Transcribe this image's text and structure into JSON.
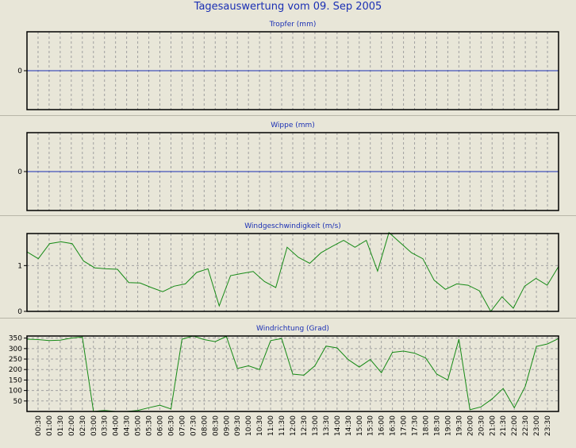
{
  "page": {
    "title": "Tagesauswertung vom 09. Sep 2005"
  },
  "colors": {
    "title": "#1a2fb4",
    "grid": "#a0a0a0",
    "zero_line": "#1a2fb4",
    "series_line": "#168a16",
    "frame": "#000000"
  },
  "time_labels": [
    "00:30",
    "01:00",
    "01:30",
    "02:00",
    "02:30",
    "03:00",
    "03:30",
    "04:00",
    "04:30",
    "05:00",
    "05:30",
    "06:00",
    "06:30",
    "07:00",
    "07:30",
    "08:00",
    "08:30",
    "09:00",
    "09:30",
    "10:00",
    "10:30",
    "11:00",
    "11:30",
    "12:00",
    "12:30",
    "13:00",
    "13:30",
    "14:00",
    "14:30",
    "15:00",
    "15:30",
    "16:00",
    "16:30",
    "17:00",
    "17:30",
    "18:00",
    "18:30",
    "19:00",
    "19:30",
    "20:00",
    "20:30",
    "21:00",
    "21:30",
    "22:00",
    "22:30",
    "23:00",
    "23:30"
  ],
  "chart_data": [
    {
      "type": "line",
      "title": "Tropfer (mm)",
      "yticks": [
        "0"
      ],
      "ylim": [
        -1,
        1
      ],
      "grid": true,
      "series": [
        {
          "values": []
        }
      ]
    },
    {
      "type": "line",
      "title": "Wippe (mm)",
      "yticks": [
        "0"
      ],
      "ylim": [
        -1,
        1
      ],
      "grid": true,
      "series": [
        {
          "values": []
        }
      ]
    },
    {
      "type": "line",
      "title": "Windgeschwindigkeit (m/s)",
      "yticks": [
        "0",
        "1"
      ],
      "ylim": [
        0,
        1.7
      ],
      "grid": true,
      "series": [
        {
          "values": [
            1.3,
            1.15,
            1.48,
            1.52,
            1.48,
            1.1,
            0.95,
            0.93,
            0.92,
            0.63,
            0.62,
            0.52,
            0.43,
            0.55,
            0.6,
            0.85,
            0.93,
            0.12,
            0.78,
            0.83,
            0.87,
            0.65,
            0.52,
            1.4,
            1.18,
            1.05,
            1.28,
            1.42,
            1.55,
            1.4,
            1.55,
            0.88,
            1.72,
            1.5,
            1.28,
            1.15,
            0.68,
            0.48,
            0.6,
            0.57,
            0.45,
            0.0,
            0.32,
            0.07,
            0.55,
            0.72,
            0.57,
            0.98
          ]
        }
      ]
    },
    {
      "type": "line",
      "title": "Windrichtung (Grad)",
      "yticks": [
        "50",
        "100",
        "150",
        "200",
        "250",
        "300",
        "350"
      ],
      "ylim": [
        0,
        360
      ],
      "grid": true,
      "series": [
        {
          "values": [
            345,
            343,
            338,
            340,
            350,
            355,
            0,
            5,
            0,
            0,
            5,
            18,
            30,
            12,
            345,
            360,
            343,
            333,
            358,
            205,
            218,
            200,
            338,
            348,
            178,
            173,
            218,
            312,
            303,
            248,
            212,
            248,
            185,
            282,
            288,
            278,
            255,
            178,
            150,
            345,
            8,
            22,
            60,
            110,
            18,
            120,
            310,
            322,
            348
          ]
        }
      ]
    }
  ]
}
